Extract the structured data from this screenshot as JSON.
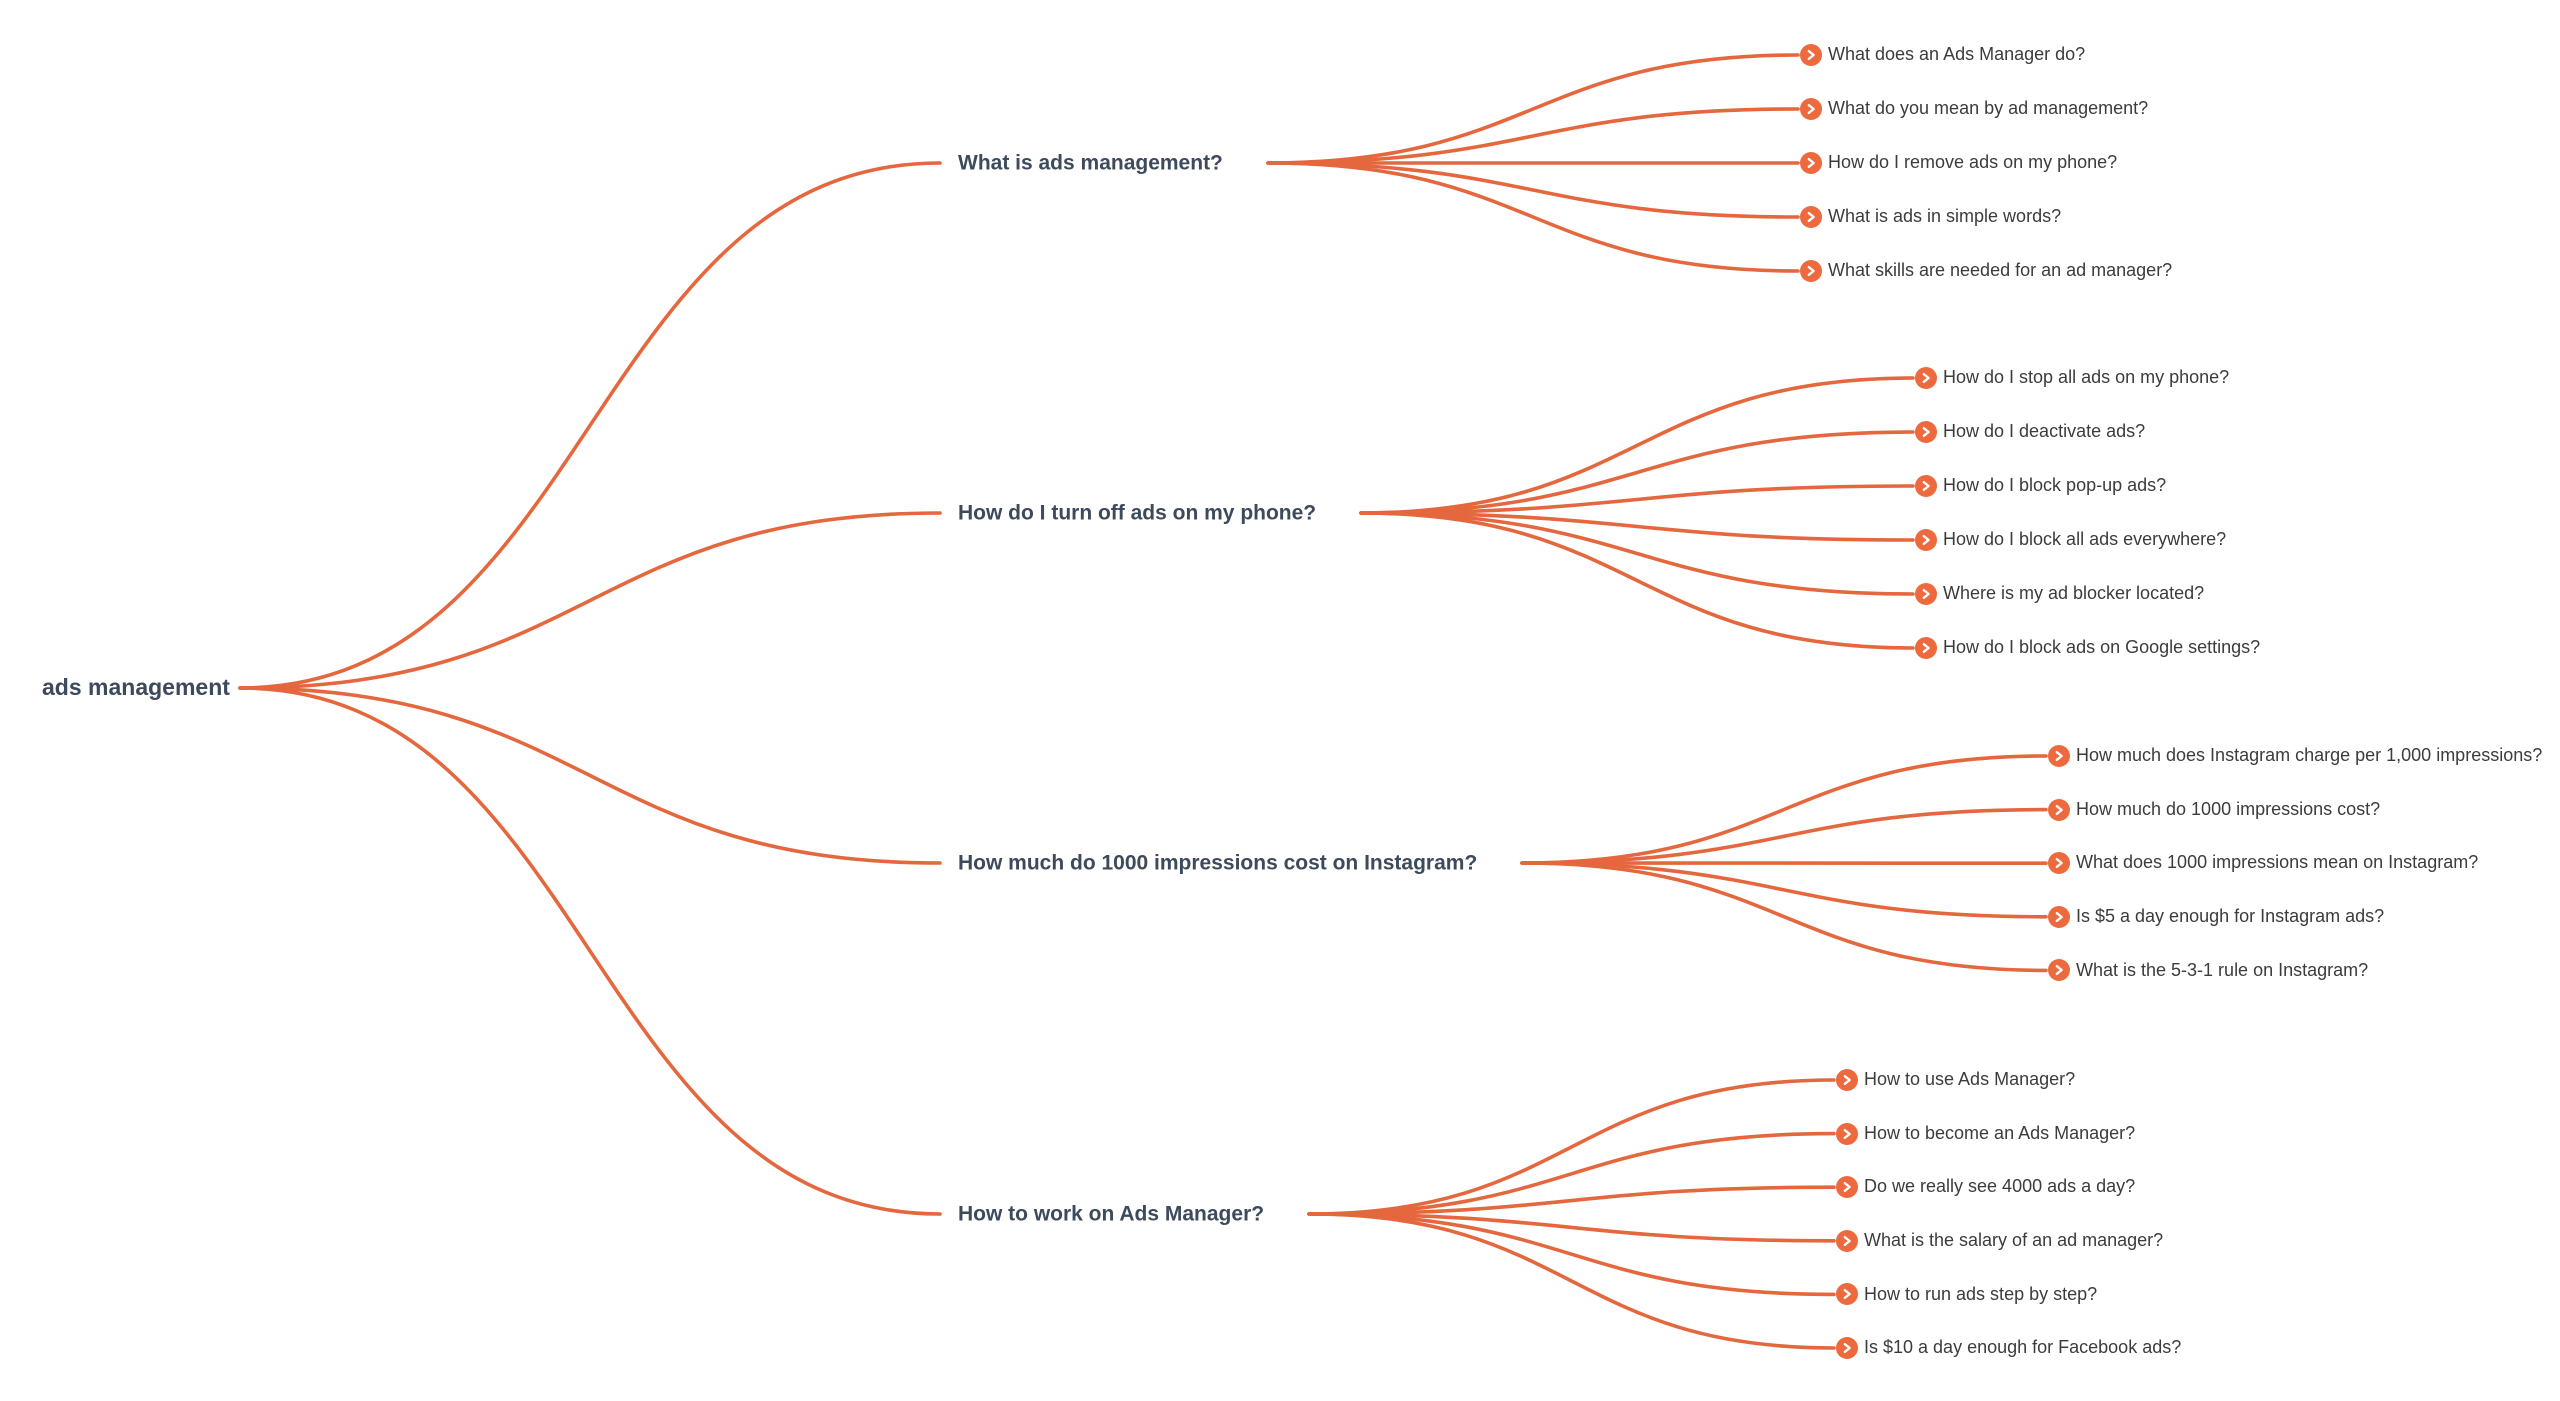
{
  "colors": {
    "background": "#ffffff",
    "line": "#e5673e",
    "icon_fill": "#ec6a3e",
    "icon_chevron": "#ffffff",
    "heading_text": "#3d4a5c",
    "leaf_text": "#3c3c3c"
  },
  "icons": {
    "leaf_bullet": "chevron-right-circle"
  },
  "mindmap": {
    "root": {
      "label": "ads management"
    },
    "branches": [
      {
        "label": "What is ads management?",
        "children": [
          "What does an Ads Manager do?",
          "What do you mean by ad management?",
          "How do I remove ads on my phone?",
          "What is ads in simple words?",
          "What skills are needed for an ad manager?"
        ]
      },
      {
        "label": "How do I turn off ads on my phone?",
        "children": [
          "How do I stop all ads on my phone?",
          "How do I deactivate ads?",
          "How do I block pop-up ads?",
          "How do I block all ads everywhere?",
          "Where is my ad blocker located?",
          "How do I block ads on Google settings?"
        ]
      },
      {
        "label": "How much do 1000 impressions cost on Instagram?",
        "children": [
          "How much does Instagram charge per 1,000 impressions?",
          "How much do 1000 impressions cost?",
          "What does 1000 impressions mean on Instagram?",
          "Is $5 a day enough for Instagram ads?",
          "What is the 5-3-1 rule on Instagram?"
        ]
      },
      {
        "label": "How to work on Ads Manager?",
        "children": [
          "How to use Ads Manager?",
          "How to become an Ads Manager?",
          "Do we really see 4000 ads a day?",
          "What is the salary of an ad manager?",
          "How to run ads step by step?",
          "Is $10 a day enough for Facebook ads?"
        ]
      }
    ]
  }
}
